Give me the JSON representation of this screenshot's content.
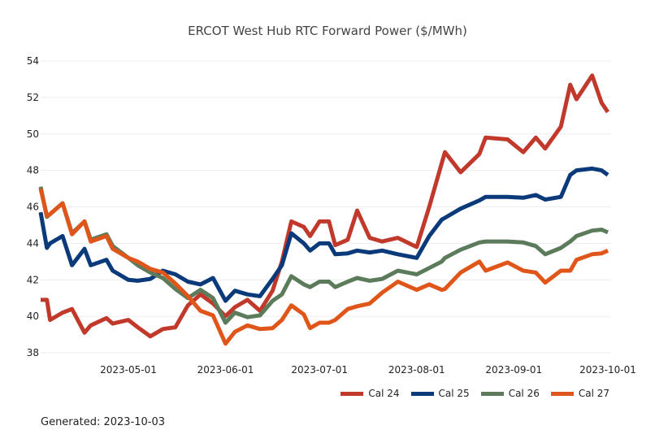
{
  "chart_data": {
    "type": "line",
    "title": "ERCOT West Hub RTC Forward Power ($/MWh)",
    "xlabel": "",
    "ylabel": "",
    "ylim": [
      38,
      54
    ],
    "xlim": [
      "2023-04-03",
      "2023-10-01"
    ],
    "yticks": [
      38,
      40,
      42,
      44,
      46,
      48,
      50,
      52,
      54
    ],
    "xticks": [
      "2023-05-01",
      "2023-06-01",
      "2023-07-01",
      "2023-08-01",
      "2023-09-01",
      "2023-10-01"
    ],
    "grid": true,
    "legend_position": "bottom-right",
    "x": [
      "2023-04-03",
      "2023-04-05",
      "2023-04-06",
      "2023-04-10",
      "2023-04-13",
      "2023-04-17",
      "2023-04-19",
      "2023-04-24",
      "2023-04-26",
      "2023-05-01",
      "2023-05-04",
      "2023-05-08",
      "2023-05-12",
      "2023-05-16",
      "2023-05-20",
      "2023-05-24",
      "2023-05-28",
      "2023-06-01",
      "2023-06-04",
      "2023-06-08",
      "2023-06-12",
      "2023-06-16",
      "2023-06-19",
      "2023-06-22",
      "2023-06-26",
      "2023-06-28",
      "2023-07-01",
      "2023-07-04",
      "2023-07-06",
      "2023-07-10",
      "2023-07-13",
      "2023-07-17",
      "2023-07-21",
      "2023-07-26",
      "2023-08-01",
      "2023-08-05",
      "2023-08-09",
      "2023-08-10",
      "2023-08-15",
      "2023-08-21",
      "2023-08-23",
      "2023-08-30",
      "2023-09-04",
      "2023-09-08",
      "2023-09-11",
      "2023-09-16",
      "2023-09-19",
      "2023-09-21",
      "2023-09-26",
      "2023-09-29",
      "2023-10-01"
    ],
    "series": [
      {
        "name": "Cal 24",
        "color": "#c0392b",
        "values": [
          40.9,
          40.9,
          39.8,
          40.2,
          40.4,
          39.1,
          39.5,
          39.9,
          39.6,
          39.8,
          39.4,
          38.9,
          39.3,
          39.4,
          40.6,
          41.2,
          40.7,
          40.0,
          40.5,
          40.9,
          40.3,
          41.4,
          43.0,
          45.2,
          44.9,
          44.4,
          45.2,
          45.2,
          43.9,
          44.2,
          45.8,
          44.3,
          44.1,
          44.3,
          43.8,
          46.0,
          48.4,
          49.0,
          47.9,
          48.9,
          49.8,
          49.7,
          49.0,
          49.8,
          49.2,
          50.4,
          52.7,
          51.9,
          53.2,
          51.7,
          51.2
        ]
      },
      {
        "name": "Cal 25",
        "color": "#0b3a7a",
        "values": [
          45.7,
          43.75,
          44.0,
          44.4,
          42.8,
          43.7,
          42.8,
          43.1,
          42.5,
          42.0,
          41.95,
          42.05,
          42.5,
          42.3,
          41.9,
          41.75,
          42.1,
          40.85,
          41.4,
          41.2,
          41.1,
          42.05,
          42.8,
          44.55,
          44.0,
          43.6,
          44.0,
          44.0,
          43.4,
          43.45,
          43.6,
          43.5,
          43.6,
          43.4,
          43.2,
          44.4,
          45.3,
          45.4,
          45.9,
          46.35,
          46.55,
          46.55,
          46.5,
          46.65,
          46.4,
          46.55,
          47.75,
          48.0,
          48.1,
          48.0,
          47.75
        ]
      },
      {
        "name": "Cal 26",
        "color": "#5b7b5a",
        "values": [
          47.1,
          45.45,
          45.6,
          46.2,
          44.55,
          45.2,
          44.2,
          44.5,
          43.85,
          43.2,
          42.8,
          42.4,
          42.1,
          41.5,
          41.0,
          41.45,
          41.0,
          39.65,
          40.2,
          39.95,
          40.05,
          40.85,
          41.2,
          42.2,
          41.75,
          41.6,
          41.9,
          41.9,
          41.6,
          41.9,
          42.1,
          41.95,
          42.05,
          42.5,
          42.3,
          42.65,
          43.0,
          43.2,
          43.65,
          44.05,
          44.1,
          44.1,
          44.05,
          43.85,
          43.4,
          43.75,
          44.1,
          44.4,
          44.7,
          44.75,
          44.6
        ]
      },
      {
        "name": "Cal 27",
        "color": "#e0561a",
        "values": [
          47.0,
          45.5,
          45.6,
          46.2,
          44.5,
          45.2,
          44.1,
          44.4,
          43.7,
          43.2,
          43.0,
          42.6,
          42.4,
          41.8,
          41.1,
          40.3,
          40.05,
          38.5,
          39.15,
          39.5,
          39.3,
          39.35,
          39.8,
          40.6,
          40.1,
          39.35,
          39.65,
          39.65,
          39.8,
          40.4,
          40.55,
          40.7,
          41.3,
          41.9,
          41.45,
          41.75,
          41.45,
          41.5,
          42.4,
          43.0,
          42.5,
          42.95,
          42.5,
          42.4,
          41.85,
          42.5,
          42.5,
          43.1,
          43.4,
          43.45,
          43.6
        ]
      }
    ]
  },
  "footer": "Generated: 2023-10-03"
}
